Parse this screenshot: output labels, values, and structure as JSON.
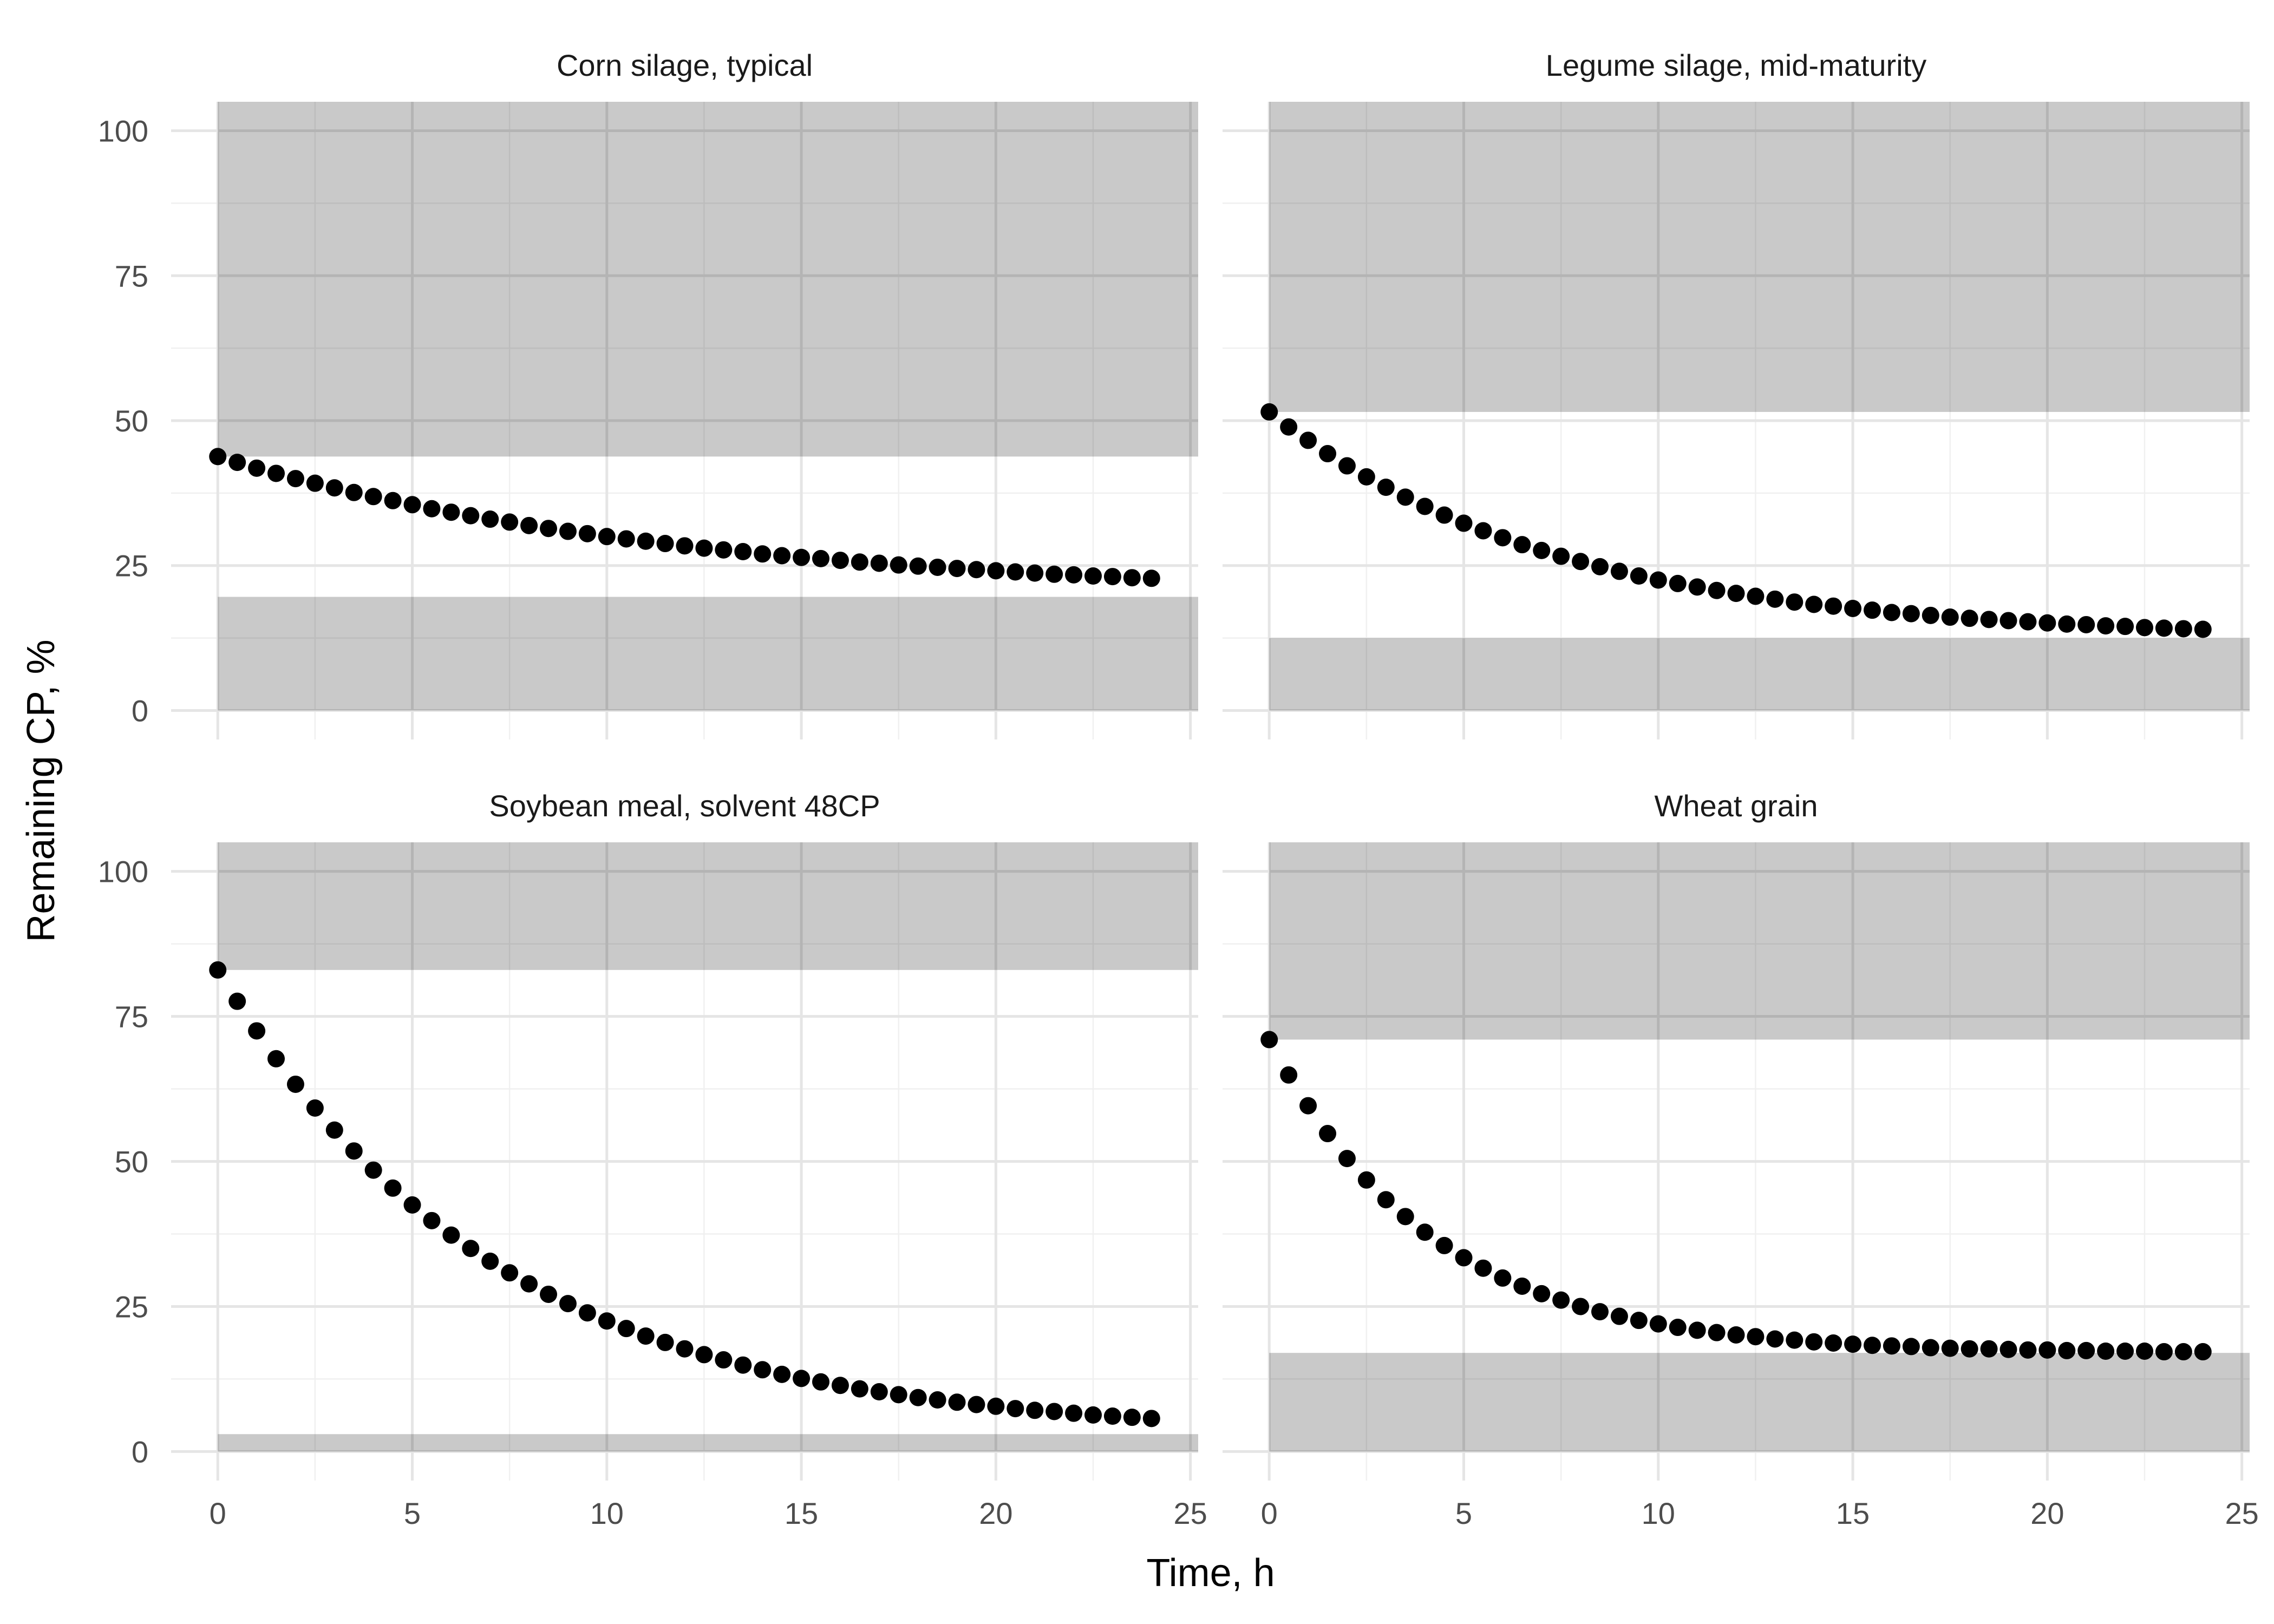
{
  "chart_data": {
    "type": "scatter",
    "xlabel": "Time, h",
    "ylabel": "Remaining CP, %",
    "xlim": [
      -1.2,
      25.2
    ],
    "ylim": [
      -5,
      105
    ],
    "x_ticks": [
      0,
      5,
      10,
      15,
      20,
      25
    ],
    "y_ticks": [
      0,
      25,
      50,
      75,
      100
    ],
    "grid": true,
    "point_color": "#000000",
    "shade_color": "#c8c8c8",
    "x": [
      0,
      0.5,
      1,
      1.5,
      2,
      2.5,
      3,
      3.5,
      4,
      4.5,
      5,
      5.5,
      6,
      6.5,
      7,
      7.5,
      8,
      8.5,
      9,
      9.5,
      10,
      10.5,
      11,
      11.5,
      12,
      12.5,
      13,
      13.5,
      14,
      14.5,
      15,
      15.5,
      16,
      16.5,
      17,
      17.5,
      18,
      18.5,
      19,
      19.5,
      20,
      20.5,
      21,
      21.5,
      22,
      22.5,
      23,
      23.5,
      24
    ],
    "panels": [
      {
        "title": "Corn silage, typical",
        "shade_upper": [
          43.8,
          105
        ],
        "shade_lower": [
          0,
          19.6
        ],
        "y": [
          43.8,
          42.8,
          41.8,
          40.9,
          40.0,
          39.2,
          38.4,
          37.6,
          36.9,
          36.2,
          35.5,
          34.8,
          34.2,
          33.6,
          33.0,
          32.5,
          31.9,
          31.4,
          30.9,
          30.5,
          30.0,
          29.6,
          29.2,
          28.8,
          28.4,
          28.0,
          27.7,
          27.4,
          27.0,
          26.7,
          26.4,
          26.2,
          25.9,
          25.6,
          25.4,
          25.1,
          24.9,
          24.7,
          24.5,
          24.3,
          24.1,
          23.9,
          23.7,
          23.5,
          23.4,
          23.2,
          23.1,
          22.9,
          22.8
        ]
      },
      {
        "title": "Legume silage, mid-maturity",
        "shade_upper": [
          51.5,
          105
        ],
        "shade_lower": [
          0,
          12.5
        ],
        "y": [
          51.5,
          48.9,
          46.6,
          44.3,
          42.2,
          40.3,
          38.5,
          36.8,
          35.2,
          33.7,
          32.3,
          31.0,
          29.8,
          28.6,
          27.6,
          26.6,
          25.7,
          24.8,
          24.0,
          23.2,
          22.5,
          21.9,
          21.3,
          20.7,
          20.2,
          19.7,
          19.2,
          18.7,
          18.3,
          18.0,
          17.6,
          17.3,
          16.9,
          16.7,
          16.4,
          16.1,
          15.9,
          15.7,
          15.5,
          15.3,
          15.1,
          14.9,
          14.8,
          14.6,
          14.5,
          14.3,
          14.2,
          14.1,
          14.0
        ]
      },
      {
        "title": "Soybean meal, solvent 48CP",
        "shade_upper": [
          83.0,
          105
        ],
        "shade_lower": [
          0,
          3.0
        ],
        "y": [
          83.0,
          77.6,
          72.5,
          67.7,
          63.3,
          59.2,
          55.4,
          51.8,
          48.5,
          45.4,
          42.5,
          39.8,
          37.3,
          35.0,
          32.8,
          30.8,
          28.9,
          27.1,
          25.5,
          23.9,
          22.5,
          21.2,
          19.9,
          18.8,
          17.7,
          16.7,
          15.8,
          14.9,
          14.1,
          13.3,
          12.6,
          12.0,
          11.4,
          10.8,
          10.3,
          9.8,
          9.3,
          8.9,
          8.5,
          8.1,
          7.8,
          7.4,
          7.1,
          6.9,
          6.6,
          6.3,
          6.1,
          5.9,
          5.7
        ]
      },
      {
        "title": "Wheat grain",
        "shade_upper": [
          71.0,
          105
        ],
        "shade_lower": [
          0,
          17.0
        ],
        "y": [
          71.0,
          64.9,
          59.6,
          54.8,
          50.5,
          46.8,
          43.4,
          40.5,
          37.8,
          35.5,
          33.4,
          31.6,
          29.9,
          28.5,
          27.2,
          26.1,
          25.0,
          24.1,
          23.3,
          22.6,
          22.0,
          21.4,
          20.9,
          20.5,
          20.1,
          19.8,
          19.4,
          19.2,
          18.9,
          18.7,
          18.5,
          18.3,
          18.2,
          18.1,
          17.9,
          17.8,
          17.7,
          17.7,
          17.6,
          17.5,
          17.5,
          17.4,
          17.4,
          17.3,
          17.3,
          17.3,
          17.2,
          17.2,
          17.2
        ]
      }
    ]
  }
}
